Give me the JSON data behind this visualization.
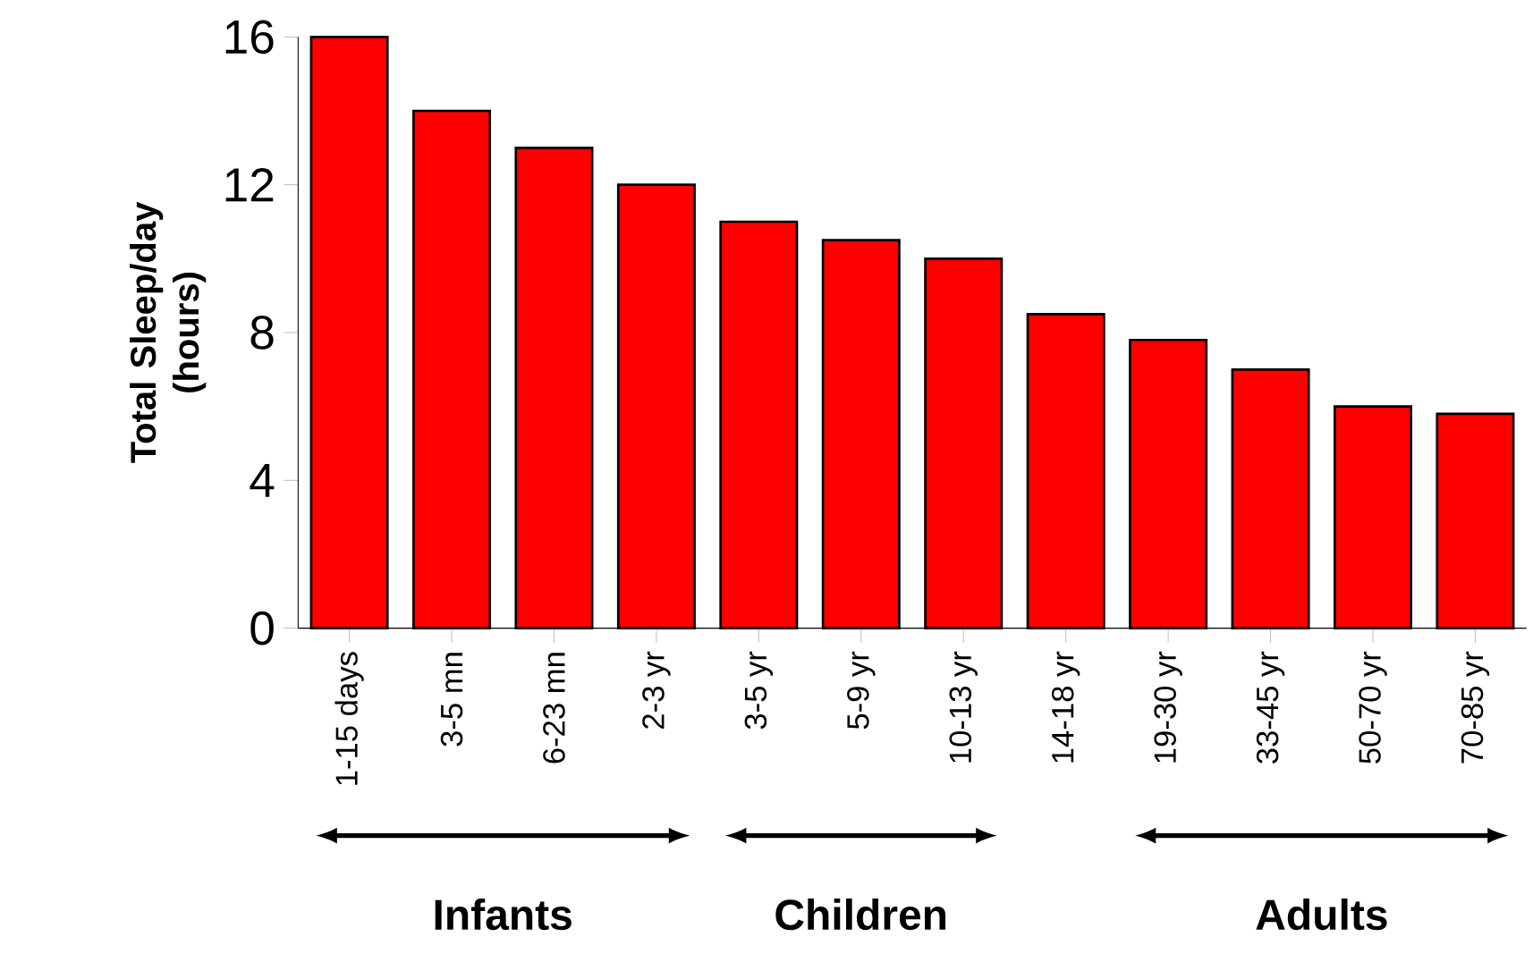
{
  "chart_data": {
    "type": "bar",
    "ylabel": "Total Sleep/day (hours)",
    "categories": [
      "1-15 days",
      "3-5 mn",
      "6-23 mn",
      "2-3 yr",
      "3-5 yr",
      "5-9 yr",
      "10-13 yr",
      "14-18 yr",
      "19-30 yr",
      "33-45 yr",
      "50-70 yr",
      "70-85 yr"
    ],
    "values": [
      16,
      14,
      13,
      12,
      11,
      10.5,
      10,
      8.5,
      7.8,
      7,
      6,
      5.8
    ],
    "color": "#ff0000",
    "ylim": [
      0,
      16
    ],
    "yticks": [
      0,
      4,
      8,
      12,
      16
    ],
    "grid": false,
    "annotations": [
      "Infants",
      "Children",
      "Adults"
    ]
  }
}
